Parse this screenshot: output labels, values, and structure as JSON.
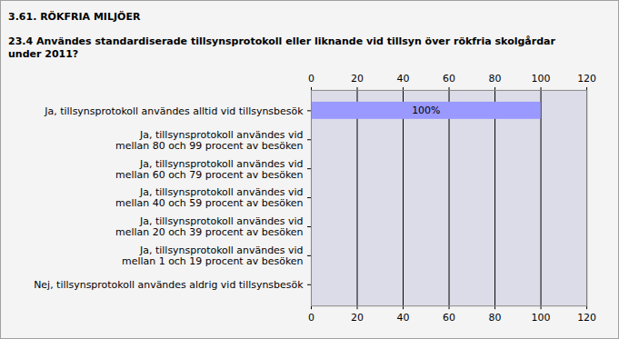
{
  "chart_data": {
    "type": "bar",
    "title": "3.61. RÖKFRIA MILJÖER",
    "subtitle": "23.4 Användes standardiserade tillsynsprotokoll eller liknande vid tillsyn över rökfria skolgårdar  under 2011?",
    "orientation": "horizontal",
    "categories": [
      "Ja, tillsynsprotokoll användes alltid vid tillsynsbesök",
      "Ja, tillsynsprotokoll användes vid\nmellan 80 och 99 procent av besöken",
      "Ja, tillsynsprotokoll användes vid\nmellan 60 och 79 procent av besöken",
      "Ja, tillsynsprotokoll användes vid\nmellan 40 och 59 procent av besöken",
      "Ja, tillsynsprotokoll användes vid\nmellan 20 och 39 procent av besöken",
      "Ja, tillsynsprotokoll användes vid\nmellan 1 och 19 procent av besöken",
      "Nej, tillsynsprotokoll användes aldrig vid tillsynsbesök"
    ],
    "values": [
      100,
      0,
      0,
      0,
      0,
      0,
      0
    ],
    "value_labels": [
      "100%",
      null,
      null,
      null,
      null,
      null,
      null
    ],
    "data_labels": true,
    "color": "#9999ff",
    "xlim": [
      0,
      120
    ],
    "xticks": [
      0,
      20,
      40,
      60,
      80,
      100,
      120
    ],
    "grid": true
  }
}
